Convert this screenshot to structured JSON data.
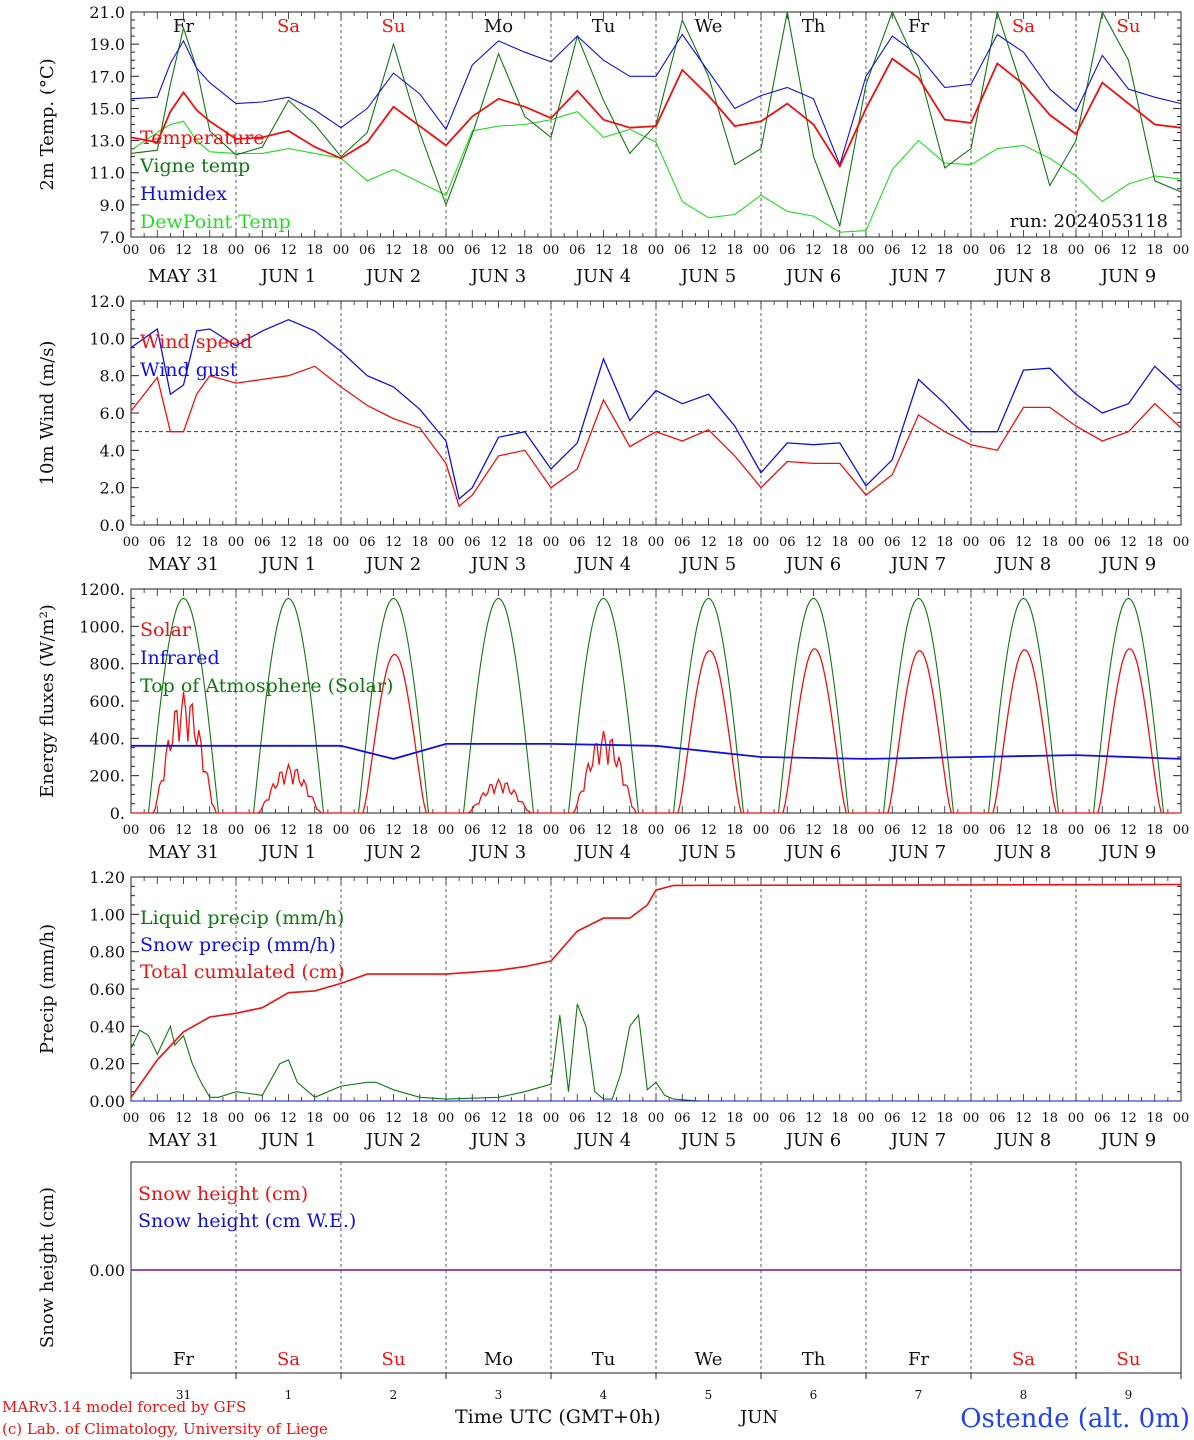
{
  "colors": {
    "red": "#ee1111",
    "green": "#117711",
    "blue": "#1111dd",
    "lightgreen": "#22dd22",
    "purple": "#771199",
    "grid": "#444444"
  },
  "hour_labels": [
    "00",
    "06",
    "12",
    "18"
  ],
  "date_labels": [
    "MAY 31",
    "JUN  1",
    "JUN  2",
    "JUN  3",
    "JUN  4",
    "JUN  5",
    "JUN  6",
    "JUN  7",
    "JUN  8",
    "JUN  9"
  ],
  "weekdays": [
    {
      "label": "Fr",
      "color": "#111111"
    },
    {
      "label": "Sa",
      "color": "#ee1111"
    },
    {
      "label": "Su",
      "color": "#ee1111"
    },
    {
      "label": "Mo",
      "color": "#111111"
    },
    {
      "label": "Tu",
      "color": "#111111"
    },
    {
      "label": "We",
      "color": "#111111"
    },
    {
      "label": "Th",
      "color": "#111111"
    },
    {
      "label": "Fr",
      "color": "#111111"
    },
    {
      "label": "Sa",
      "color": "#ee1111"
    },
    {
      "label": "Su",
      "color": "#ee1111"
    }
  ],
  "bottom_day_numbers": [
    "31",
    "1",
    "2",
    "3",
    "4",
    "5",
    "6",
    "7",
    "8",
    "9"
  ],
  "footer": {
    "model": "MARv3.14 model forced by GFS",
    "lab": "(c) Lab. of Climatology, University of Liege",
    "axis_label": "Time UTC (GMT+0h)",
    "month": "JUN",
    "station": "Ostende (alt. 0m)"
  },
  "chart_data": [
    {
      "type": "line",
      "ylabel": "2m Temp. (°C)",
      "ylim": [
        7,
        21
      ],
      "yticks": [
        "7.0",
        "9.0",
        "11.0",
        "13.0",
        "15.0",
        "17.0",
        "19.0",
        "21.0"
      ],
      "run": "run: 2024053118",
      "x_unit": "hours since 2024-05-31 00 UTC",
      "series": [
        {
          "name": "Temperature",
          "color": "#ee1111",
          "x": [
            0,
            6,
            9,
            12,
            15,
            18,
            24,
            30,
            36,
            42,
            48,
            54,
            60,
            66,
            72,
            78,
            84,
            90,
            96,
            102,
            108,
            114,
            120,
            126,
            132,
            138,
            144,
            150,
            156,
            162,
            168,
            174,
            180,
            186,
            192,
            198,
            204,
            210,
            216,
            222,
            228,
            234,
            240
          ],
          "values": [
            13.2,
            12.9,
            14.8,
            16.0,
            14.9,
            14.2,
            13.1,
            13.2,
            13.6,
            12.6,
            11.9,
            12.9,
            15.1,
            13.9,
            12.7,
            14.5,
            15.6,
            15.1,
            14.4,
            16.1,
            14.3,
            13.8,
            13.9,
            17.4,
            15.8,
            13.9,
            14.2,
            15.3,
            14.0,
            11.4,
            15.0,
            18.1,
            16.9,
            14.3,
            14.1,
            17.8,
            16.5,
            14.6,
            13.4,
            16.6,
            15.3,
            14.0,
            13.8
          ]
        },
        {
          "name": "Vigne temp",
          "color": "#117711",
          "x": [
            0,
            6,
            9,
            12,
            15,
            18,
            24,
            30,
            36,
            42,
            48,
            54,
            60,
            66,
            72,
            78,
            84,
            90,
            96,
            102,
            108,
            114,
            120,
            126,
            132,
            138,
            144,
            150,
            156,
            162,
            168,
            174,
            180,
            186,
            192,
            198,
            204,
            210,
            216,
            222,
            228,
            234,
            240
          ],
          "values": [
            12.2,
            12.4,
            16.5,
            20.0,
            17.5,
            13.6,
            12.1,
            12.6,
            15.5,
            14.0,
            12.0,
            13.5,
            19.0,
            13.5,
            9.0,
            13.4,
            18.4,
            14.5,
            13.2,
            19.5,
            15.5,
            12.2,
            14.0,
            20.5,
            17.0,
            11.5,
            12.5,
            21.0,
            12.0,
            7.7,
            16.5,
            21.0,
            17.5,
            11.3,
            12.5,
            21.0,
            16.0,
            10.2,
            13.0,
            21.0,
            18.0,
            10.5,
            9.8
          ]
        },
        {
          "name": "Humidex",
          "color": "#1111dd",
          "x": [
            0,
            6,
            9,
            12,
            15,
            18,
            24,
            30,
            36,
            42,
            48,
            54,
            60,
            66,
            72,
            78,
            84,
            90,
            96,
            102,
            108,
            114,
            120,
            126,
            132,
            138,
            144,
            150,
            156,
            162,
            168,
            174,
            180,
            186,
            192,
            198,
            204,
            210,
            216,
            222,
            228,
            234,
            240
          ],
          "values": [
            15.6,
            15.7,
            17.8,
            19.2,
            17.5,
            16.6,
            15.3,
            15.4,
            15.7,
            14.9,
            13.8,
            15.0,
            17.2,
            15.9,
            13.7,
            17.7,
            19.2,
            18.5,
            17.9,
            19.5,
            18.0,
            17.0,
            17.0,
            19.6,
            17.3,
            15.0,
            15.8,
            16.3,
            15.6,
            11.5,
            17.0,
            19.5,
            18.3,
            16.3,
            16.5,
            19.6,
            18.5,
            16.2,
            14.8,
            18.3,
            16.2,
            15.7,
            15.3
          ]
        },
        {
          "name": "DewPoint Temp",
          "color": "#22dd22",
          "x": [
            0,
            6,
            9,
            12,
            15,
            18,
            24,
            30,
            36,
            42,
            48,
            54,
            60,
            66,
            72,
            78,
            84,
            90,
            96,
            102,
            108,
            114,
            120,
            126,
            132,
            138,
            144,
            150,
            156,
            162,
            168,
            174,
            180,
            186,
            192,
            198,
            204,
            210,
            216,
            222,
            228,
            234,
            240
          ],
          "values": [
            12.4,
            13.5,
            14.0,
            14.2,
            13.0,
            12.3,
            12.2,
            12.2,
            12.5,
            12.2,
            11.9,
            10.5,
            11.2,
            10.4,
            9.6,
            13.6,
            13.9,
            14.0,
            14.3,
            14.8,
            13.2,
            13.7,
            12.9,
            9.2,
            8.2,
            8.4,
            9.6,
            8.6,
            8.3,
            7.3,
            7.4,
            11.2,
            13.0,
            11.6,
            11.5,
            12.5,
            12.7,
            11.9,
            10.8,
            9.2,
            10.3,
            10.8,
            10.6
          ]
        }
      ]
    },
    {
      "type": "line",
      "ylabel": "10m Wind (m/s)",
      "ylim": [
        0,
        12
      ],
      "yticks": [
        "0.0",
        "2.0",
        "4.0",
        "6.0",
        "8.0",
        "10.0",
        "12.0"
      ],
      "reference_line": 5.0,
      "series": [
        {
          "name": "Wind speed",
          "color": "#ee1111",
          "x": [
            0,
            6,
            9,
            12,
            15,
            18,
            24,
            30,
            36,
            42,
            48,
            54,
            60,
            66,
            72,
            75,
            78,
            84,
            90,
            96,
            102,
            108,
            114,
            120,
            126,
            132,
            138,
            144,
            150,
            156,
            162,
            168,
            174,
            180,
            186,
            192,
            198,
            204,
            210,
            216,
            222,
            228,
            234,
            240
          ],
          "values": [
            6.1,
            7.9,
            5.0,
            5.0,
            7.0,
            8.0,
            7.6,
            7.8,
            8.0,
            8.5,
            7.4,
            6.4,
            5.7,
            5.2,
            3.3,
            1.0,
            1.6,
            3.7,
            4.0,
            2.0,
            3.0,
            6.7,
            4.2,
            5.0,
            4.5,
            5.1,
            3.7,
            2.0,
            3.4,
            3.3,
            3.3,
            1.6,
            2.7,
            5.9,
            5.0,
            4.3,
            4.0,
            6.3,
            6.3,
            5.3,
            4.5,
            5.0,
            6.5,
            5.2
          ]
        },
        {
          "name": "Wind gust",
          "color": "#1111dd",
          "x": [
            0,
            6,
            9,
            12,
            15,
            18,
            24,
            30,
            36,
            42,
            48,
            54,
            60,
            66,
            72,
            75,
            78,
            84,
            90,
            96,
            102,
            108,
            114,
            120,
            126,
            132,
            138,
            144,
            150,
            156,
            162,
            168,
            174,
            180,
            186,
            192,
            198,
            204,
            210,
            216,
            222,
            228,
            234,
            240
          ],
          "values": [
            9.5,
            10.5,
            7.0,
            7.5,
            10.4,
            10.5,
            9.6,
            10.4,
            11.0,
            10.4,
            9.3,
            8.0,
            7.4,
            6.2,
            4.5,
            1.4,
            2.0,
            4.7,
            5.0,
            3.0,
            4.4,
            8.9,
            5.6,
            7.2,
            6.5,
            7.0,
            5.3,
            2.8,
            4.4,
            4.3,
            4.4,
            2.1,
            3.5,
            7.8,
            6.5,
            5.0,
            5.0,
            8.3,
            8.4,
            7.0,
            6.0,
            6.5,
            8.5,
            7.2
          ]
        }
      ]
    },
    {
      "type": "line",
      "ylabel": "Energy fluxes (W/m²)",
      "ylim": [
        0,
        1200
      ],
      "yticks": [
        "0.",
        "200.",
        "400.",
        "600.",
        "800.",
        "1000.",
        "1200."
      ],
      "series": [
        {
          "name": "Solar",
          "color": "#ee1111",
          "peaks": [
            650,
            260,
            850,
            180,
            440,
            870,
            880,
            870,
            875,
            880
          ],
          "x": [],
          "values": []
        },
        {
          "name": "Infrared",
          "color": "#1111dd",
          "x": [
            0,
            24,
            48,
            60,
            72,
            96,
            120,
            144,
            168,
            192,
            216,
            240
          ],
          "values": [
            360,
            360,
            360,
            290,
            370,
            370,
            360,
            300,
            290,
            300,
            310,
            290
          ]
        },
        {
          "name": "Top of Atmosphere (Solar)",
          "color": "#117711",
          "peak": 1150,
          "x": [],
          "values": []
        }
      ]
    },
    {
      "type": "line",
      "ylabel": "Precip (mm/h)",
      "ylim": [
        0,
        1.2
      ],
      "yticks": [
        "0.00",
        "0.20",
        "0.40",
        "0.60",
        "0.80",
        "1.00",
        "1.20"
      ],
      "series": [
        {
          "name": "Liquid precip (mm/h)",
          "color": "#117711",
          "x": [
            0,
            2,
            4,
            6,
            9,
            10,
            12,
            14,
            16,
            18,
            20,
            24,
            30,
            34,
            36,
            38,
            42,
            48,
            54,
            56,
            60,
            66,
            72,
            84,
            90,
            96,
            98,
            100,
            102,
            104,
            106,
            108,
            110,
            112,
            114,
            116,
            118,
            120,
            122,
            124,
            130,
            140,
            240
          ],
          "values": [
            0.28,
            0.38,
            0.35,
            0.25,
            0.4,
            0.3,
            0.35,
            0.2,
            0.1,
            0.02,
            0.02,
            0.05,
            0.03,
            0.2,
            0.22,
            0.1,
            0.02,
            0.08,
            0.1,
            0.1,
            0.06,
            0.02,
            0.01,
            0.02,
            0.05,
            0.09,
            0.46,
            0.05,
            0.52,
            0.4,
            0.05,
            0.01,
            0.01,
            0.15,
            0.4,
            0.46,
            0.06,
            0.1,
            0.03,
            0.01,
            0.0,
            0.0,
            0.0
          ]
        },
        {
          "name": "Snow precip (mm/h)",
          "color": "#1111dd",
          "x": [
            0,
            240
          ],
          "values": [
            0.0,
            0.0
          ]
        },
        {
          "name": "Total cumulated (cm)",
          "color": "#ee1111",
          "x": [
            0,
            6,
            12,
            18,
            24,
            30,
            36,
            42,
            48,
            54,
            60,
            66,
            72,
            84,
            90,
            96,
            102,
            108,
            114,
            118,
            120,
            124,
            240
          ],
          "values": [
            0.02,
            0.22,
            0.37,
            0.45,
            0.47,
            0.5,
            0.58,
            0.59,
            0.63,
            0.68,
            0.68,
            0.68,
            0.68,
            0.7,
            0.72,
            0.75,
            0.91,
            0.98,
            0.98,
            1.05,
            1.13,
            1.155,
            1.16
          ]
        }
      ]
    },
    {
      "type": "line",
      "ylabel": "Snow height (cm)",
      "ytick": "0.00",
      "series": [
        {
          "name": "Snow height (cm)",
          "color": "#ee1111",
          "x": [
            0,
            240
          ],
          "values": [
            0,
            0
          ]
        },
        {
          "name": "Snow height (cm W.E.)",
          "color": "#1111dd",
          "x": [
            0,
            240
          ],
          "values": [
            0,
            0
          ]
        }
      ]
    }
  ]
}
